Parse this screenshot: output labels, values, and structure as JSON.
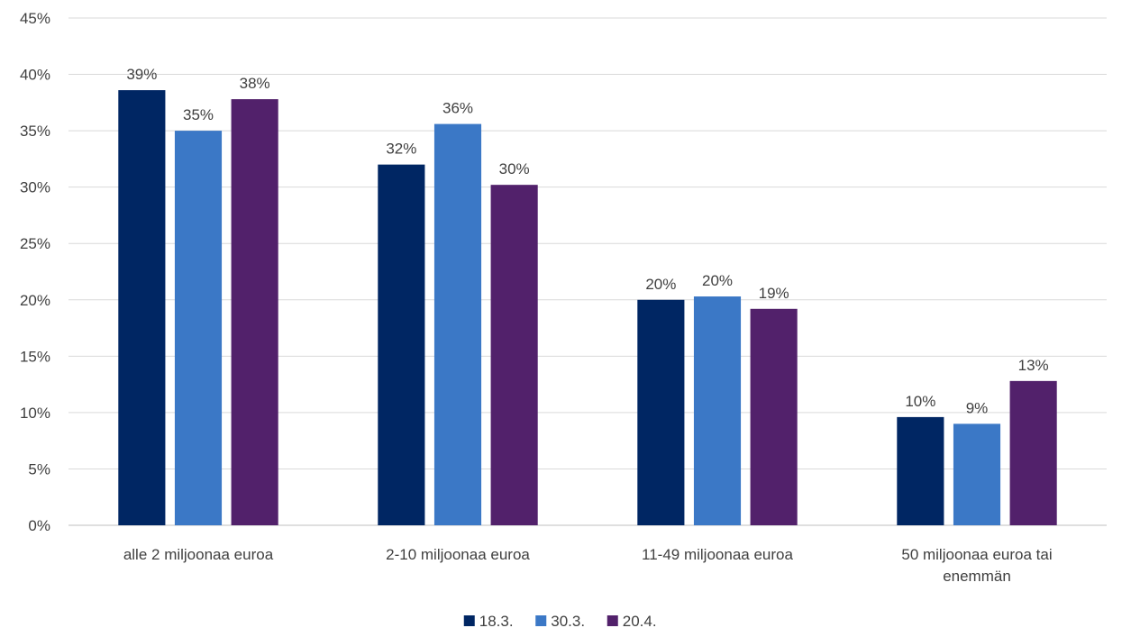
{
  "chart_data": {
    "type": "bar",
    "title": "",
    "xlabel": "",
    "ylabel": "",
    "categories": [
      [
        "alle 2 miljoonaa euroa"
      ],
      [
        "2-10 miljoonaa euroa"
      ],
      [
        "11-49 miljoonaa euroa"
      ],
      [
        "50 miljoonaa euroa tai",
        "enemmän"
      ]
    ],
    "series": [
      {
        "name": "18.3.",
        "color": "#002663",
        "values": [
          38.6,
          32.0,
          20.0,
          9.6
        ],
        "labels": [
          "39%",
          "32%",
          "20%",
          "10%"
        ]
      },
      {
        "name": "30.3.",
        "color": "#3b78c6",
        "values": [
          35.0,
          35.6,
          20.3,
          9.0
        ],
        "labels": [
          "35%",
          "36%",
          "20%",
          "9%"
        ]
      },
      {
        "name": "20.4.",
        "color": "#52216b",
        "values": [
          37.8,
          30.2,
          19.2,
          12.8
        ],
        "labels": [
          "38%",
          "30%",
          "19%",
          "13%"
        ]
      }
    ],
    "ylim": [
      0,
      45
    ],
    "yticks": [
      "0%",
      "5%",
      "10%",
      "15%",
      "20%",
      "25%",
      "30%",
      "35%",
      "40%",
      "45%"
    ],
    "grid": true,
    "legend_position": "bottom"
  }
}
